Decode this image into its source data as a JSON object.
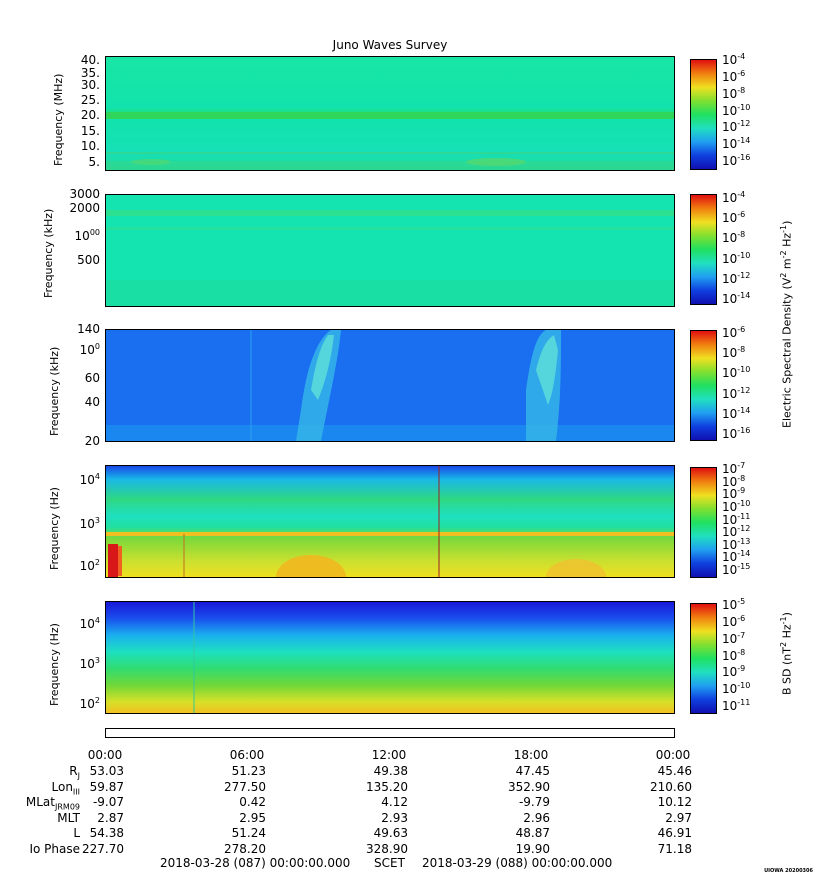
{
  "title": "Juno Waves Survey",
  "panels": [
    {
      "ylabel": "Frequency (MHz)",
      "yticks": [
        "40.",
        "35.",
        "30.",
        "25.",
        "20.",
        "15.",
        "10.",
        "5."
      ],
      "cbar_labels": [
        "10-4",
        "10-6",
        "10-8",
        "10-10",
        "10-12",
        "10-14",
        "10-16"
      ]
    },
    {
      "ylabel": "Frequency (kHz)",
      "yticks": [
        "3000",
        "2000",
        "1000",
        "500"
      ],
      "cbar_labels": [
        "10-4",
        "10-6",
        "10-8",
        "10-10",
        "10-12",
        "10-14"
      ]
    },
    {
      "ylabel": "Frequency (kHz)",
      "yticks": [
        "140",
        "100",
        "60",
        "40",
        "20"
      ],
      "cbar_labels": [
        "10-6",
        "10-8",
        "10-10",
        "10-12",
        "10-14",
        "10-16"
      ]
    },
    {
      "ylabel": "Frequency (Hz)",
      "yticks": [
        "10 4",
        "10 3",
        "10 2"
      ],
      "cbar_labels": [
        "10-7",
        "10-8",
        "10-9",
        "10-10",
        "10-11",
        "10-12",
        "10-13",
        "10-14",
        "10-15"
      ]
    },
    {
      "ylabel": "Frequency (Hz)",
      "yticks": [
        "10 4",
        "10 3",
        "10 2"
      ],
      "cbar_labels": [
        "10-5",
        "10-6",
        "10-7",
        "10-8",
        "10-9",
        "10-10",
        "10-11"
      ]
    }
  ],
  "colorbar_titles": {
    "electric": "Electric Spectral Density (V2 m-2 Hz-1)",
    "magnetic": "B SD (nT2 Hz-1)"
  },
  "time_ticks": [
    "00:00",
    "06:00",
    "12:00",
    "18:00",
    "00:00"
  ],
  "ephemeris": [
    {
      "label": "RJ",
      "values": [
        "53.03",
        "51.23",
        "49.38",
        "47.45",
        "45.46"
      ]
    },
    {
      "label": "LonIII",
      "values": [
        "59.87",
        "277.50",
        "135.20",
        "352.90",
        "210.60"
      ]
    },
    {
      "label": "MLatJRM09",
      "values": [
        "-9.07",
        "0.42",
        "4.12",
        "-9.79",
        "10.12"
      ]
    },
    {
      "label": "MLT",
      "values": [
        "2.87",
        "2.95",
        "2.93",
        "2.96",
        "2.97"
      ]
    },
    {
      "label": "L",
      "values": [
        "54.38",
        "51.24",
        "49.63",
        "48.87",
        "46.91"
      ]
    },
    {
      "label": "Io Phase",
      "values": [
        "227.70",
        "278.20",
        "328.90",
        "19.90",
        "71.18"
      ]
    }
  ],
  "footer": {
    "start": "2018-03-28 (087) 00:00:00.000",
    "scet": "SCET",
    "end": "2018-03-29 (088) 00:00:00.000"
  },
  "stamp": "UIOWA 20200306",
  "chart_data": {
    "type": "heatmap",
    "title": "Juno Waves Survey",
    "x_range": [
      "2018-03-28 00:00",
      "2018-03-29 00:00"
    ],
    "x_ticks": [
      "00:00",
      "06:00",
      "12:00",
      "18:00",
      "00:00"
    ],
    "panels": [
      {
        "ylabel": "Frequency (MHz)",
        "ylim": [
          3,
          41
        ],
        "color_range": [
          "10-16",
          "10-4"
        ]
      },
      {
        "ylabel": "Frequency (kHz)",
        "ylim": [
          140,
          3000
        ],
        "log": true,
        "color_range": [
          "10-15",
          "10-4"
        ]
      },
      {
        "ylabel": "Frequency (kHz)",
        "ylim": [
          20,
          140
        ],
        "log": true,
        "color_range": [
          "10-16",
          "10-6"
        ]
      },
      {
        "ylabel": "Frequency (Hz)",
        "ylim": [
          50,
          20000
        ],
        "log": true,
        "color_range": [
          "10-15",
          "10-7"
        ]
      },
      {
        "ylabel": "Frequency (Hz)",
        "ylim": [
          50,
          20000
        ],
        "log": true,
        "color_range": [
          "10-11",
          "10-5"
        ]
      }
    ]
  }
}
